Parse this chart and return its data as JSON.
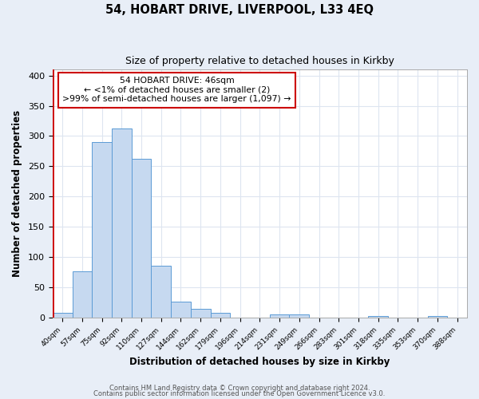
{
  "title": "54, HOBART DRIVE, LIVERPOOL, L33 4EQ",
  "subtitle": "Size of property relative to detached houses in Kirkby",
  "xlabel": "Distribution of detached houses by size in Kirkby",
  "ylabel": "Number of detached properties",
  "bin_labels": [
    "40sqm",
    "57sqm",
    "75sqm",
    "92sqm",
    "110sqm",
    "127sqm",
    "144sqm",
    "162sqm",
    "179sqm",
    "196sqm",
    "214sqm",
    "231sqm",
    "249sqm",
    "266sqm",
    "283sqm",
    "301sqm",
    "318sqm",
    "335sqm",
    "353sqm",
    "370sqm",
    "388sqm"
  ],
  "bar_heights": [
    8,
    77,
    290,
    312,
    263,
    86,
    27,
    15,
    8,
    0,
    0,
    5,
    5,
    0,
    0,
    0,
    3,
    0,
    0,
    3,
    0
  ],
  "bar_color": "#c6d9f0",
  "bar_edge_color": "#5b9bd5",
  "property_line_color": "#cc0000",
  "annotation_title": "54 HOBART DRIVE: 46sqm",
  "annotation_line1": "← <1% of detached houses are smaller (2)",
  "annotation_line2": ">99% of semi-detached houses are larger (1,097) →",
  "annotation_box_color": "#cc0000",
  "ylim": [
    0,
    410
  ],
  "yticks": [
    0,
    50,
    100,
    150,
    200,
    250,
    300,
    350,
    400
  ],
  "footer1": "Contains HM Land Registry data © Crown copyright and database right 2024.",
  "footer2": "Contains public sector information licensed under the Open Government Licence v3.0.",
  "fig_bg_color": "#e8eef7",
  "plot_bg_color": "#ffffff",
  "grid_color": "#dde5f0"
}
